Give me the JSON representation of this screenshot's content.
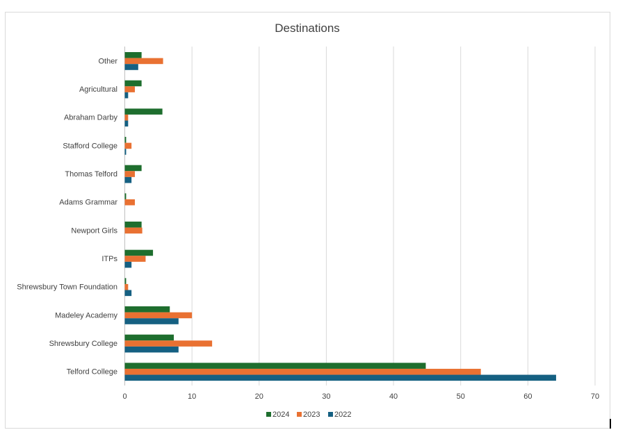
{
  "chart_data": {
    "type": "bar",
    "orientation": "horizontal",
    "title": "Destinations",
    "xlabel": "",
    "ylabel": "",
    "xlim": [
      0,
      70
    ],
    "x_ticks": [
      0,
      10,
      20,
      30,
      40,
      50,
      60,
      70
    ],
    "grid": true,
    "legend_position": "bottom",
    "categories": [
      "Other",
      "Agricultural",
      "Abraham Darby",
      "Stafford College",
      "Thomas Telford",
      "Adams Grammar",
      "Newport Girls",
      "ITPs",
      "Shrewsbury Town Foundation",
      "Madeley Academy",
      "Shrewsbury College",
      "Telford College"
    ],
    "series": [
      {
        "name": "2024",
        "color": "#1e6e2e",
        "values": [
          2.5,
          2.5,
          5.6,
          0.2,
          2.5,
          0.2,
          2.5,
          4.2,
          0.2,
          6.7,
          7.3,
          44.8
        ]
      },
      {
        "name": "2023",
        "color": "#e97132",
        "values": [
          5.7,
          1.5,
          0.5,
          1.0,
          1.5,
          1.5,
          2.6,
          3.1,
          0.5,
          10.0,
          13.0,
          53.0
        ]
      },
      {
        "name": "2022",
        "color": "#156082",
        "values": [
          2.0,
          0.5,
          0.5,
          0.2,
          1.0,
          0.0,
          0.0,
          1.0,
          1.0,
          8.0,
          8.0,
          64.2
        ]
      }
    ]
  }
}
